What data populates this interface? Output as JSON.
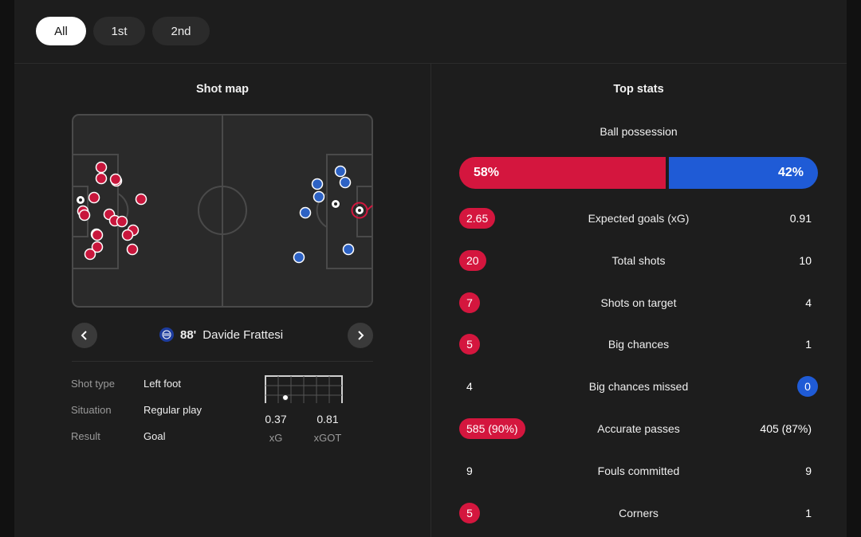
{
  "tabs": [
    {
      "label": "All",
      "active": true
    },
    {
      "label": "1st",
      "active": false
    },
    {
      "label": "2nd",
      "active": false
    }
  ],
  "shot_map": {
    "title": "Shot map",
    "selected_shot": {
      "minute": "88'",
      "player": "Davide Frattesi",
      "details": [
        {
          "key": "Shot type",
          "value": "Left foot"
        },
        {
          "key": "Situation",
          "value": "Regular play"
        },
        {
          "key": "Result",
          "value": "Goal"
        }
      ],
      "xg": "0.37",
      "xg_label": "xG",
      "xgot": "0.81",
      "xgot_label": "xGOT"
    },
    "colors": {
      "home": "#c8163c",
      "away": "#2d62c4"
    }
  },
  "top_stats": {
    "title": "Top stats",
    "possession": {
      "label": "Ball possession",
      "home": "58%",
      "away": "42%",
      "home_value": 58,
      "away_value": 42
    },
    "rows": [
      {
        "label": "Expected goals (xG)",
        "home": "2.65",
        "away": "0.91",
        "highlight": "home"
      },
      {
        "label": "Total shots",
        "home": "20",
        "away": "10",
        "highlight": "home"
      },
      {
        "label": "Shots on target",
        "home": "7",
        "away": "4",
        "highlight": "home"
      },
      {
        "label": "Big chances",
        "home": "5",
        "away": "1",
        "highlight": "home"
      },
      {
        "label": "Big chances missed",
        "home": "4",
        "away": "0",
        "highlight": "away"
      },
      {
        "label": "Accurate passes",
        "home": "585 (90%)",
        "away": "405 (87%)",
        "highlight": "home"
      },
      {
        "label": "Fouls committed",
        "home": "9",
        "away": "9",
        "highlight": "none"
      },
      {
        "label": "Corners",
        "home": "5",
        "away": "1",
        "highlight": "home"
      }
    ],
    "colors": {
      "home": "#d4163e",
      "away": "#1f5bd6"
    }
  }
}
